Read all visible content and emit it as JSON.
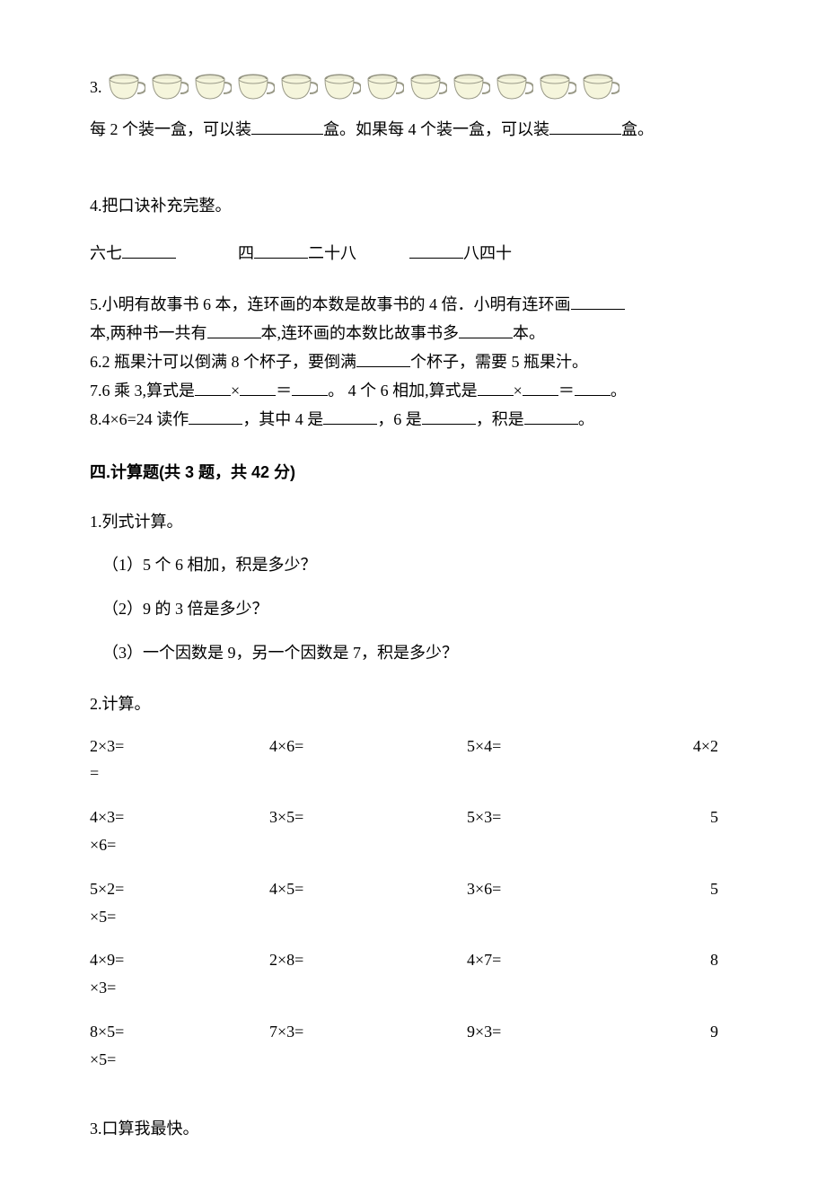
{
  "q3": {
    "number": "3.",
    "cups_count": 12,
    "cup_color_body": "#f5f5dc",
    "cup_color_rim": "#8a8a7a",
    "cup_color_liquid": "#e8e8d0",
    "text_pre": "每 2 个装一盒，可以装",
    "text_mid": "盒。如果每 4 个装一盒，可以装",
    "text_post": "盒。"
  },
  "q4": {
    "number": "4.",
    "prompt": "把口诀补充完整。",
    "part1_pre": "六七",
    "part2_pre": "四",
    "part2_post": "二十八",
    "part3_post": "八四十"
  },
  "q5": {
    "line1_a": "5.小明有故事书 6 本，连环画的本数是故事书的 4 倍．小明有连环画",
    "line2_a": "本,两种书一共有",
    "line2_b": "本,连环画的本数比故事书多",
    "line2_c": "本。"
  },
  "q6": {
    "a": "6.2 瓶果汁可以倒满 8 个杯子，要倒满",
    "b": "个杯子，需要 5 瓶果汁。"
  },
  "q7": {
    "a": "7.6 乘 3,算式是",
    "b": "×",
    "c": "＝",
    "d": "。 4 个 6 相加,算式是",
    "e": "×",
    "f": "＝",
    "g": "。"
  },
  "q8": {
    "a": "8.4×6=24 读作",
    "b": "，其中 4 是",
    "c": "，6 是",
    "d": "，积是",
    "e": "。"
  },
  "section4": {
    "title": "四.计算题(共 3 题，共 42 分)"
  },
  "s4q1": {
    "header": "1.列式计算。",
    "item1": "（1）5 个 6 相加，积是多少？",
    "item2": "（2）9 的 3 倍是多少？",
    "item3": "（3）一个因数是 9，另一个因数是 7，积是多少？"
  },
  "s4q2": {
    "header": "2.计算。",
    "rows": [
      {
        "c1": "2×3=",
        "c2": "4×6=",
        "c3": "5×4=",
        "c4a": "4×2",
        "c4b": "="
      },
      {
        "c1": "4×3=",
        "c2": "3×5=",
        "c3": "5×3=",
        "c4a": "5",
        "c4b": "×6="
      },
      {
        "c1": "5×2=",
        "c2": "4×5=",
        "c3": "3×6=",
        "c4a": "5",
        "c4b": "×5="
      },
      {
        "c1": "4×9=",
        "c2": "2×8=",
        "c3": "4×7=",
        "c4a": "8",
        "c4b": "×3="
      },
      {
        "c1": "8×5=",
        "c2": "7×3=",
        "c3": "9×3=",
        "c4a": "9",
        "c4b": "×5="
      }
    ]
  },
  "s4q3": {
    "header": "3.口算我最快。"
  }
}
